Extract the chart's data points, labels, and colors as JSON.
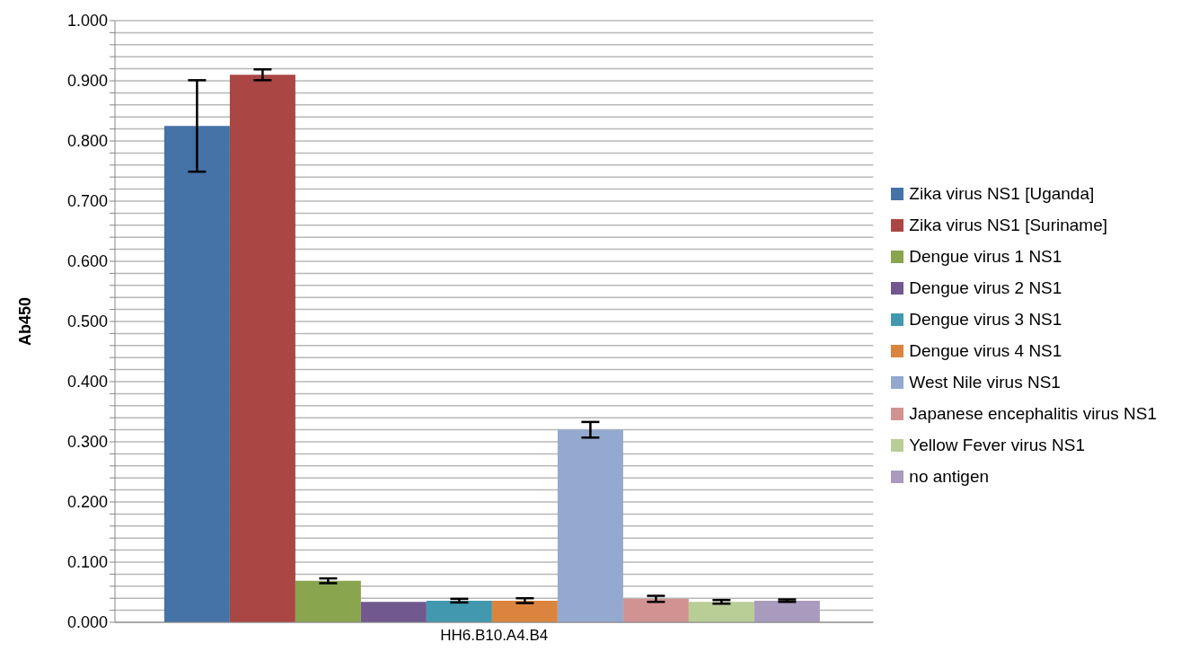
{
  "chart_data": {
    "type": "bar",
    "ylabel": "Ab450",
    "categories": [
      "HH6.B10.A4.B4"
    ],
    "series": [
      {
        "name": "Zika virus NS1 [Uganda]",
        "color": "#4572a7",
        "values": [
          0.825
        ],
        "errors": [
          0.076
        ]
      },
      {
        "name": "Zika virus NS1 [Suriname]",
        "color": "#aa4643",
        "values": [
          0.91
        ],
        "errors": [
          0.009
        ]
      },
      {
        "name": "Dengue virus 1 NS1",
        "color": "#89a54e",
        "values": [
          0.069
        ],
        "errors": [
          0.004
        ]
      },
      {
        "name": "Dengue virus 2 NS1",
        "color": "#71588f",
        "values": [
          0.034
        ]
      },
      {
        "name": "Dengue virus 3 NS1",
        "color": "#4198af",
        "values": [
          0.036
        ],
        "errors": [
          0.003
        ]
      },
      {
        "name": "Dengue virus 4 NS1",
        "color": "#db843d",
        "values": [
          0.036
        ],
        "errors": [
          0.004
        ]
      },
      {
        "name": "West Nile virus NS1",
        "color": "#93a9cf",
        "values": [
          0.32
        ],
        "errors": [
          0.013
        ]
      },
      {
        "name": "Japanese encephalitis virus NS1",
        "color": "#d19392",
        "values": [
          0.039
        ],
        "errors": [
          0.005
        ]
      },
      {
        "name": "Yellow Fever virus NS1",
        "color": "#b9cd96",
        "values": [
          0.034
        ],
        "errors": [
          0.003
        ]
      },
      {
        "name": "no antigen",
        "color": "#a99bbd",
        "values": [
          0.036
        ],
        "errors": [
          0.002
        ]
      }
    ],
    "ylim": [
      0,
      1
    ],
    "yticks": [
      {
        "value": 0,
        "label": "0.000"
      },
      {
        "value": 0.02,
        "label": null
      },
      {
        "value": 0.04,
        "label": null
      },
      {
        "value": 0.06,
        "label": null
      },
      {
        "value": 0.08,
        "label": null
      },
      {
        "value": 0.1,
        "label": "0.100"
      },
      {
        "value": 0.12,
        "label": null
      },
      {
        "value": 0.14,
        "label": null
      },
      {
        "value": 0.16,
        "label": null
      },
      {
        "value": 0.18,
        "label": null
      },
      {
        "value": 0.2,
        "label": "0.200"
      },
      {
        "value": 0.22,
        "label": null
      },
      {
        "value": 0.24,
        "label": null
      },
      {
        "value": 0.26,
        "label": null
      },
      {
        "value": 0.28,
        "label": null
      },
      {
        "value": 0.3,
        "label": "0.300"
      },
      {
        "value": 0.32,
        "label": null
      },
      {
        "value": 0.34,
        "label": null
      },
      {
        "value": 0.36,
        "label": null
      },
      {
        "value": 0.38,
        "label": null
      },
      {
        "value": 0.4,
        "label": "0.400"
      },
      {
        "value": 0.42,
        "label": null
      },
      {
        "value": 0.44,
        "label": null
      },
      {
        "value": 0.46,
        "label": null
      },
      {
        "value": 0.48,
        "label": null
      },
      {
        "value": 0.5,
        "label": "0.500"
      },
      {
        "value": 0.52,
        "label": null
      },
      {
        "value": 0.54,
        "label": null
      },
      {
        "value": 0.56,
        "label": null
      },
      {
        "value": 0.58,
        "label": null
      },
      {
        "value": 0.6,
        "label": "0.600"
      },
      {
        "value": 0.62,
        "label": null
      },
      {
        "value": 0.64,
        "label": null
      },
      {
        "value": 0.66,
        "label": null
      },
      {
        "value": 0.68,
        "label": null
      },
      {
        "value": 0.7,
        "label": "0.700"
      },
      {
        "value": 0.72,
        "label": null
      },
      {
        "value": 0.74,
        "label": null
      },
      {
        "value": 0.76,
        "label": null
      },
      {
        "value": 0.78,
        "label": null
      },
      {
        "value": 0.8,
        "label": "0.800"
      },
      {
        "value": 0.82,
        "label": null
      },
      {
        "value": 0.84,
        "label": null
      },
      {
        "value": 0.86,
        "label": null
      },
      {
        "value": 0.88,
        "label": null
      },
      {
        "value": 0.9,
        "label": "0.900"
      },
      {
        "value": 0.92,
        "label": null
      },
      {
        "value": 0.94,
        "label": null
      },
      {
        "value": 0.96,
        "label": null
      },
      {
        "value": 0.98,
        "label": null
      },
      {
        "value": 1,
        "label": "1.000"
      }
    ],
    "grid": "y",
    "legend": "right"
  }
}
